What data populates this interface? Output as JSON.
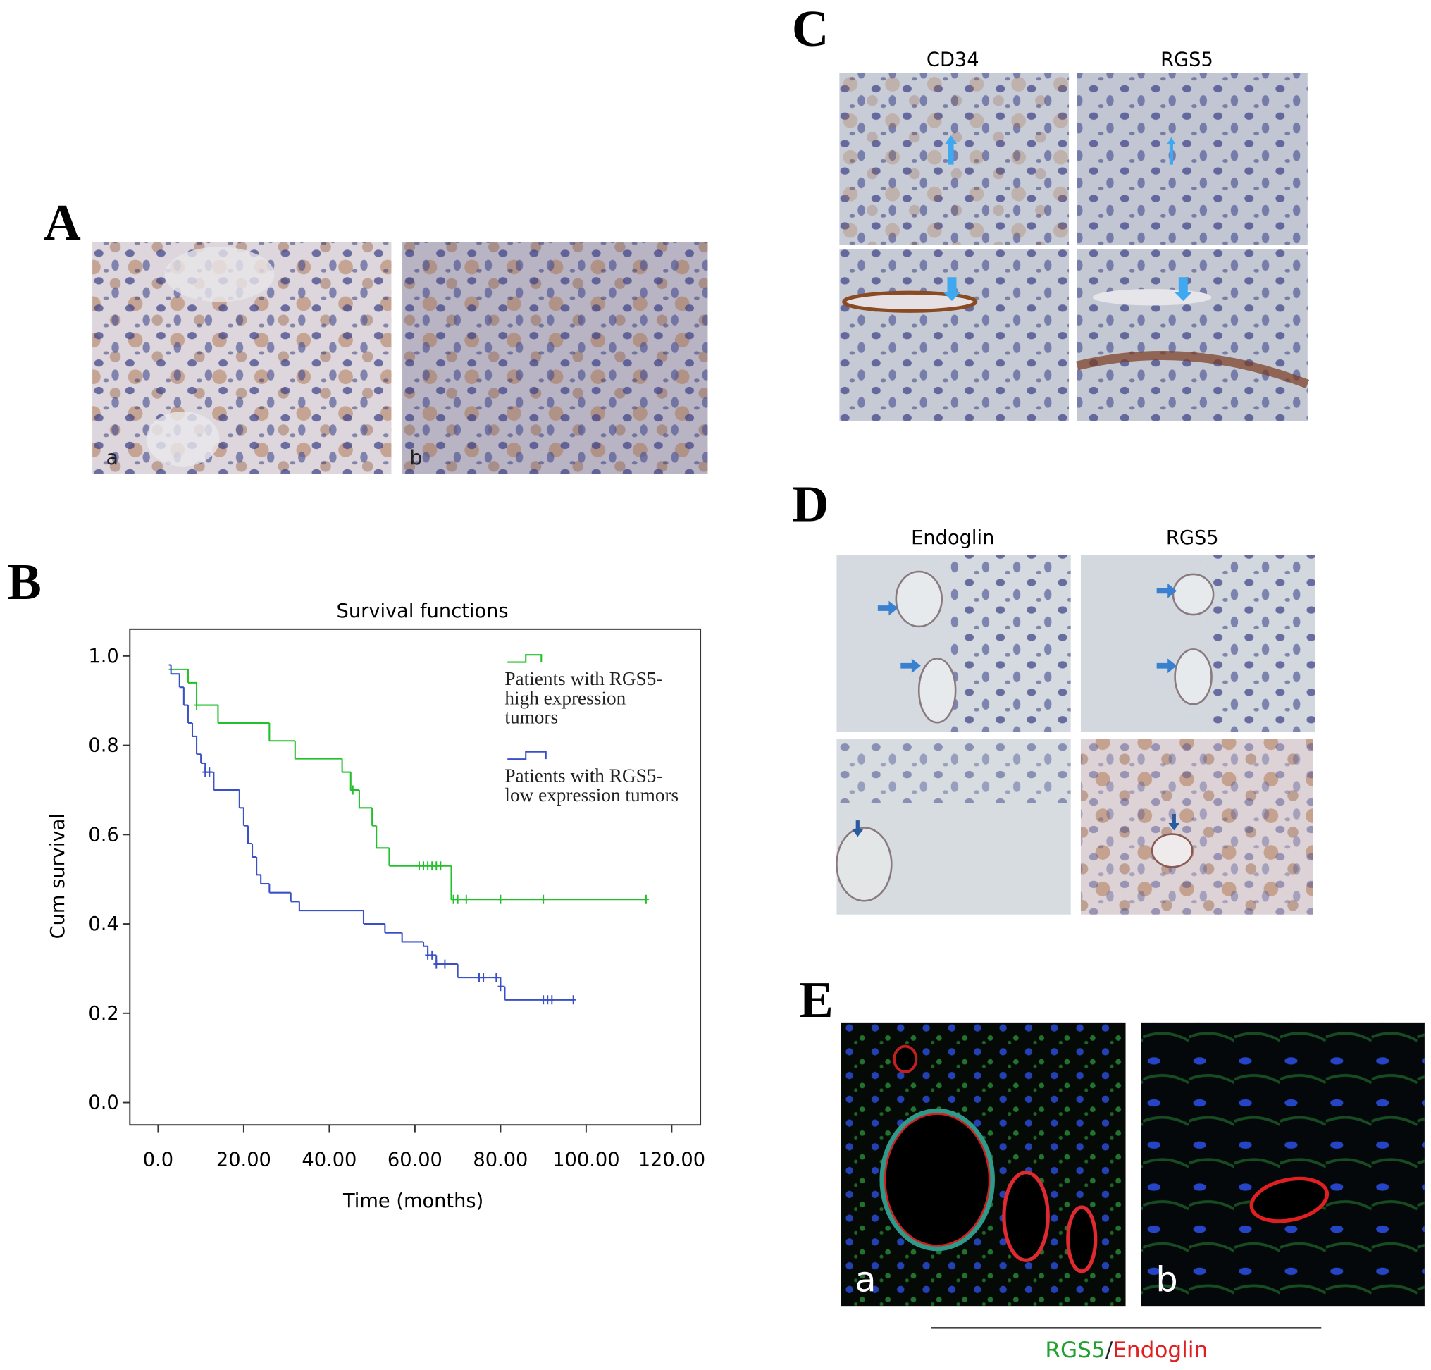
{
  "panel_labels": [
    "A",
    "B",
    "C",
    "D",
    "E"
  ],
  "panel_a": {
    "image_labels": [
      "a",
      "b"
    ]
  },
  "panel_c": {
    "column_titles": [
      "CD34",
      "RGS5"
    ]
  },
  "panel_d": {
    "column_titles": [
      "Endoglin",
      "RGS5"
    ]
  },
  "panel_e": {
    "image_labels": [
      "a",
      "b"
    ],
    "caption": [
      "RGS5",
      "/",
      "Endoglin"
    ]
  },
  "chart_data": {
    "type": "line",
    "step": true,
    "title": "Survival functions",
    "x_label": "Time (months)",
    "y_label": "Cum survival",
    "xlim": [
      -6.6,
      126.7
    ],
    "ylim": [
      -0.05,
      1.06
    ],
    "xticks": [
      {
        "value": 0,
        "label": "0.0"
      },
      {
        "value": 20,
        "label": "20.00"
      },
      {
        "value": 40,
        "label": "40.00"
      },
      {
        "value": 60,
        "label": "60.00"
      },
      {
        "value": 80,
        "label": "80.00"
      },
      {
        "value": 100,
        "label": "100.00"
      },
      {
        "value": 120,
        "label": "120.00"
      }
    ],
    "yticks": [
      {
        "value": 0,
        "label": "0.0"
      },
      0.2,
      0.4,
      0.6,
      0.8,
      {
        "value": 1,
        "label": "1.0"
      }
    ],
    "series": [
      {
        "name": "Patients with RGS5-high expression tumors",
        "color": "#22c02a",
        "x": [
          2.5,
          7,
          9,
          14,
          26,
          32,
          43,
          45,
          47,
          50,
          51,
          54,
          68.5,
          114
        ],
        "values": [
          0.97,
          0.94,
          0.89,
          0.85,
          0.81,
          0.77,
          0.74,
          0.7,
          0.66,
          0.62,
          0.57,
          0.53,
          0.455,
          0.455
        ],
        "censored": [
          9,
          45.5,
          61,
          62,
          63,
          64,
          65,
          66,
          69,
          70,
          72,
          80,
          90,
          114
        ]
      },
      {
        "name": "Patients with RGS5-low expression tumors",
        "color": "#3a50c8",
        "x": [
          2.5,
          3,
          5,
          6,
          7,
          8,
          9,
          10,
          11,
          13,
          19,
          20,
          21,
          22,
          23,
          24,
          26,
          31,
          33,
          48,
          53,
          57,
          62,
          63,
          65,
          70,
          80,
          81,
          97
        ],
        "values": [
          0.98,
          0.96,
          0.93,
          0.89,
          0.85,
          0.82,
          0.78,
          0.76,
          0.74,
          0.7,
          0.66,
          0.62,
          0.58,
          0.55,
          0.51,
          0.49,
          0.47,
          0.45,
          0.43,
          0.4,
          0.38,
          0.36,
          0.35,
          0.33,
          0.31,
          0.28,
          0.26,
          0.23,
          0.23
        ],
        "censored": [
          11,
          12,
          63,
          64,
          65,
          67,
          75,
          76,
          79,
          80,
          90,
          91,
          92,
          97
        ]
      }
    ]
  }
}
